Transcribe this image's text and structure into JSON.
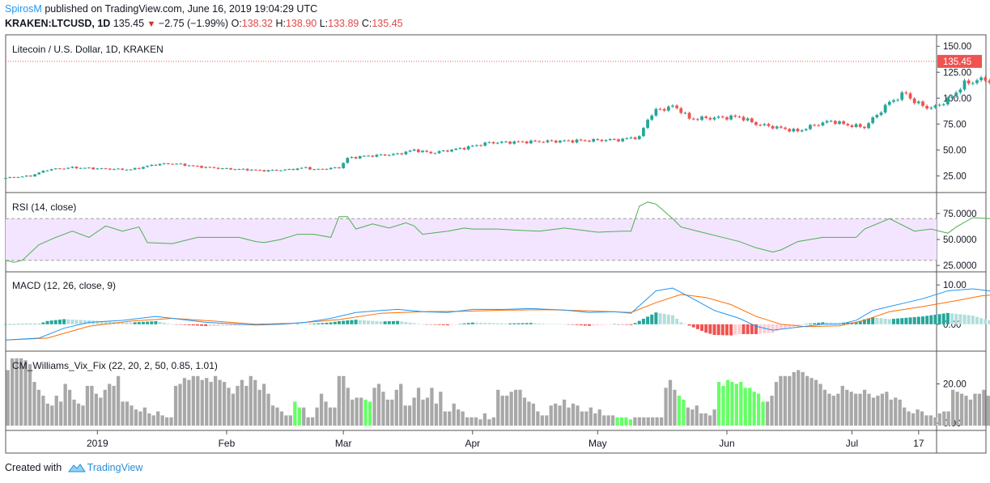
{
  "header": {
    "author": "SpirosM",
    "published": "published on TradingView.com, June 16, 2019 19:04:29 UTC",
    "symbol": "KRAKEN:LTCUSD, 1D",
    "last": "135.45",
    "change": "−2.75 (−1.99%)",
    "o_label": "O:",
    "o_val": "138.32",
    "h_label": "H:",
    "h_val": "138.90",
    "l_label": "L:",
    "l_val": "133.89",
    "c_label": "C:",
    "c_val": "135.45"
  },
  "footer": {
    "created": "Created with",
    "brand": "TradingView"
  },
  "colors": {
    "up": "#26a69a",
    "down": "#ef5350",
    "rsi": "#4caf50",
    "rsi_band": "#f3e5ff",
    "macd": "#2196f3",
    "signal": "#ff6d00",
    "vix_gray": "#a8a8a8",
    "vix_green": "#66ff66",
    "price_tag": "#ef5350"
  },
  "chart_data": [
    {
      "type": "candlestick",
      "title": "Litecoin / U.S. Dollar, 1D, KRAKEN",
      "ylim": [
        12,
        158
      ],
      "yticks": [
        25,
        50,
        75,
        100,
        125,
        150
      ],
      "ytick_labels": [
        "25.00",
        "50.00",
        "75.00",
        "100.00",
        "125.00",
        "150.00"
      ],
      "last_price_label": "135.45",
      "close_path_points": [
        [
          0,
          23
        ],
        [
          6,
          25
        ],
        [
          10,
          31
        ],
        [
          16,
          33
        ],
        [
          22,
          32
        ],
        [
          30,
          31
        ],
        [
          36,
          36
        ],
        [
          40,
          37
        ],
        [
          46,
          34
        ],
        [
          52,
          32
        ],
        [
          58,
          31
        ],
        [
          62,
          30
        ],
        [
          68,
          31
        ],
        [
          72,
          33
        ],
        [
          74,
          31
        ],
        [
          80,
          33
        ],
        [
          82,
          42
        ],
        [
          86,
          44
        ],
        [
          94,
          46
        ],
        [
          98,
          50
        ],
        [
          102,
          47
        ],
        [
          110,
          52
        ],
        [
          116,
          57
        ],
        [
          126,
          58
        ],
        [
          138,
          59
        ],
        [
          148,
          60
        ],
        [
          150,
          62
        ],
        [
          152,
          62
        ],
        [
          154,
          80
        ],
        [
          156,
          88
        ],
        [
          160,
          92
        ],
        [
          162,
          88
        ],
        [
          164,
          80
        ],
        [
          170,
          81
        ],
        [
          176,
          82
        ],
        [
          180,
          75
        ],
        [
          186,
          71
        ],
        [
          190,
          68
        ],
        [
          194,
          74
        ],
        [
          198,
          78
        ],
        [
          202,
          74
        ],
        [
          206,
          72
        ],
        [
          208,
          80
        ],
        [
          212,
          96
        ],
        [
          216,
          105
        ],
        [
          218,
          96
        ],
        [
          222,
          90
        ],
        [
          226,
          98
        ],
        [
          230,
          114
        ],
        [
          234,
          118
        ],
        [
          240,
          116
        ],
        [
          244,
          106
        ],
        [
          248,
          101
        ],
        [
          254,
          110
        ],
        [
          258,
          122
        ],
        [
          262,
          135
        ],
        [
          266,
          138
        ],
        [
          268,
          135
        ]
      ]
    },
    {
      "type": "line",
      "title": "RSI (14, close)",
      "ylim": [
        22,
        92
      ],
      "band": [
        30,
        70
      ],
      "yticks": [
        25,
        50,
        75
      ],
      "ytick_labels": [
        "25.0000",
        "50.0000",
        "75.0000"
      ],
      "points": [
        [
          0,
          30
        ],
        [
          2,
          28
        ],
        [
          4,
          30
        ],
        [
          8,
          45
        ],
        [
          12,
          52
        ],
        [
          16,
          58
        ],
        [
          20,
          52
        ],
        [
          24,
          63
        ],
        [
          28,
          58
        ],
        [
          32,
          62
        ],
        [
          34,
          47
        ],
        [
          40,
          46
        ],
        [
          46,
          52
        ],
        [
          52,
          52
        ],
        [
          56,
          52
        ],
        [
          60,
          48
        ],
        [
          62,
          47
        ],
        [
          66,
          50
        ],
        [
          70,
          55
        ],
        [
          74,
          55
        ],
        [
          78,
          52
        ],
        [
          80,
          72
        ],
        [
          82,
          72
        ],
        [
          84,
          60
        ],
        [
          88,
          65
        ],
        [
          92,
          61
        ],
        [
          96,
          66
        ],
        [
          98,
          63
        ],
        [
          100,
          55
        ],
        [
          106,
          58
        ],
        [
          110,
          61
        ],
        [
          112,
          60
        ],
        [
          118,
          60
        ],
        [
          122,
          59
        ],
        [
          128,
          58
        ],
        [
          134,
          61
        ],
        [
          138,
          59
        ],
        [
          142,
          57
        ],
        [
          148,
          58
        ],
        [
          150,
          58
        ],
        [
          152,
          82
        ],
        [
          154,
          86
        ],
        [
          156,
          84
        ],
        [
          160,
          70
        ],
        [
          162,
          62
        ],
        [
          166,
          58
        ],
        [
          172,
          52
        ],
        [
          176,
          48
        ],
        [
          180,
          42
        ],
        [
          184,
          38
        ],
        [
          186,
          40
        ],
        [
          190,
          48
        ],
        [
          196,
          52
        ],
        [
          200,
          52
        ],
        [
          204,
          52
        ],
        [
          206,
          60
        ],
        [
          212,
          70
        ],
        [
          214,
          66
        ],
        [
          218,
          58
        ],
        [
          222,
          60
        ],
        [
          226,
          56
        ],
        [
          228,
          62
        ],
        [
          232,
          71
        ],
        [
          236,
          70
        ],
        [
          240,
          66
        ],
        [
          242,
          60
        ],
        [
          246,
          56
        ],
        [
          250,
          62
        ],
        [
          254,
          66
        ],
        [
          256,
          70
        ],
        [
          262,
          70
        ],
        [
          264,
          64
        ],
        [
          268,
          66
        ]
      ]
    },
    {
      "type": "line",
      "title": "MACD (12, 26, close, 9)",
      "ylim": [
        -6,
        12.5
      ],
      "yticks": [
        0,
        10
      ],
      "ytick_labels": [
        "0.00",
        "10.00"
      ],
      "series": [
        {
          "points": [
            [
              0,
              -4
            ],
            [
              8,
              -3.5
            ],
            [
              14,
              -1
            ],
            [
              20,
              0.5
            ],
            [
              28,
              1
            ],
            [
              36,
              2
            ],
            [
              40,
              1.5
            ],
            [
              48,
              0.5
            ],
            [
              56,
              0
            ],
            [
              60,
              -0.2
            ],
            [
              66,
              0
            ],
            [
              72,
              0.5
            ],
            [
              78,
              1.5
            ],
            [
              84,
              3
            ],
            [
              90,
              3.5
            ],
            [
              94,
              3.8
            ],
            [
              100,
              3.2
            ],
            [
              106,
              3
            ],
            [
              112,
              3.8
            ],
            [
              120,
              3.8
            ],
            [
              126,
              4
            ],
            [
              134,
              3.6
            ],
            [
              140,
              3
            ],
            [
              146,
              3.2
            ],
            [
              150,
              2.8
            ],
            [
              156,
              8.5
            ],
            [
              160,
              9.2
            ],
            [
              164,
              7
            ],
            [
              170,
              3.5
            ],
            [
              176,
              1.5
            ],
            [
              180,
              -0.5
            ],
            [
              184,
              -1.5
            ],
            [
              188,
              -1
            ],
            [
              192,
              -0.5
            ],
            [
              196,
              0
            ],
            [
              200,
              0
            ],
            [
              204,
              1
            ],
            [
              208,
              3.5
            ],
            [
              212,
              4.5
            ],
            [
              216,
              5.5
            ],
            [
              220,
              6.5
            ],
            [
              226,
              8.5
            ],
            [
              232,
              9
            ],
            [
              236,
              8.5
            ],
            [
              242,
              6
            ],
            [
              248,
              6
            ],
            [
              252,
              7
            ],
            [
              256,
              9.5
            ],
            [
              262,
              10.2
            ],
            [
              266,
              10.2
            ]
          ]
        },
        {
          "points": [
            [
              0,
              -4
            ],
            [
              10,
              -3.5
            ],
            [
              20,
              -0.5
            ],
            [
              30,
              0.8
            ],
            [
              40,
              1.5
            ],
            [
              50,
              0.8
            ],
            [
              60,
              0
            ],
            [
              70,
              0.3
            ],
            [
              80,
              1.2
            ],
            [
              90,
              2.8
            ],
            [
              100,
              3.2
            ],
            [
              110,
              3.3
            ],
            [
              120,
              3.6
            ],
            [
              130,
              3.7
            ],
            [
              140,
              3.4
            ],
            [
              150,
              3
            ],
            [
              156,
              5.5
            ],
            [
              162,
              7.6
            ],
            [
              168,
              6.8
            ],
            [
              174,
              5
            ],
            [
              180,
              2
            ],
            [
              186,
              0
            ],
            [
              192,
              -0.6
            ],
            [
              200,
              -0.4
            ],
            [
              206,
              1
            ],
            [
              212,
              3.2
            ],
            [
              220,
              4.5
            ],
            [
              228,
              6
            ],
            [
              234,
              7.2
            ],
            [
              240,
              7.8
            ],
            [
              248,
              7
            ],
            [
              256,
              8
            ],
            [
              266,
              9.2
            ]
          ]
        }
      ]
    },
    {
      "type": "bar",
      "title": "CM_Williams_Vix_Fix (22, 20, 2, 50, 0.85, 1.01)",
      "ylim": [
        -2,
        35
      ],
      "yticks": [
        0,
        20
      ],
      "ytick_labels": [
        "0.00",
        "20.00"
      ],
      "values": [
        27,
        33,
        33,
        33,
        32,
        30,
        21,
        17,
        14,
        10,
        9,
        14,
        11,
        20,
        17,
        12,
        10,
        9,
        19,
        19,
        15,
        13,
        17,
        20,
        19,
        24,
        11,
        11,
        9,
        7,
        6,
        8,
        5,
        4,
        6,
        4,
        3,
        3,
        19,
        20,
        23,
        22,
        24,
        24,
        22,
        23,
        21,
        24,
        22,
        21,
        18,
        15,
        19,
        22,
        19,
        24,
        22,
        17,
        20,
        15,
        9,
        8,
        6,
        4,
        4,
        11,
        8,
        8,
        3,
        3,
        8,
        15,
        11,
        8,
        8,
        24,
        24,
        18,
        12,
        13,
        13,
        12,
        11,
        18,
        20,
        16,
        12,
        12,
        17,
        20,
        9,
        9,
        13,
        18,
        12,
        13,
        18,
        10,
        16,
        6,
        6,
        10,
        7,
        6,
        3,
        3,
        3,
        2,
        5,
        2,
        3,
        17,
        14,
        14,
        16,
        17,
        17,
        13,
        11,
        10,
        6,
        4,
        4,
        9,
        10,
        9,
        12,
        8,
        10,
        9,
        6,
        6,
        8,
        5,
        7,
        4,
        4,
        4,
        3,
        3,
        3,
        2,
        3,
        3,
        3,
        3,
        3,
        3,
        3,
        18,
        22,
        17,
        14,
        12,
        8,
        7,
        9,
        5,
        5,
        4,
        7,
        21,
        19,
        22,
        21,
        20,
        21,
        18,
        18,
        16,
        15,
        11,
        11,
        14,
        21,
        24,
        24,
        24,
        26,
        27,
        26,
        24,
        23,
        22,
        20,
        17,
        15,
        14,
        15,
        19,
        17,
        16,
        15,
        15,
        17,
        15,
        13,
        14,
        15,
        16,
        12,
        13,
        12,
        8,
        6,
        5,
        7,
        6,
        4,
        4,
        3,
        5,
        6,
        6,
        17,
        16,
        15,
        14,
        12,
        15,
        15,
        17,
        14,
        16,
        13,
        11,
        10,
        8,
        6,
        6,
        12,
        9,
        8,
        8,
        3,
        3,
        8,
        4,
        4,
        4,
        4,
        4,
        4,
        3,
        3,
        3,
        3,
        2,
        2,
        2,
        3,
        4,
        5
      ],
      "highlight_indices": [
        65,
        66,
        81,
        82,
        138,
        139,
        140,
        141,
        152,
        153,
        161,
        162,
        163,
        164,
        165,
        166,
        167,
        168,
        169,
        170,
        171
      ],
      "mean_estimate": 12
    }
  ],
  "time_axis": {
    "labels": [
      "2019",
      "Feb",
      "Mar",
      "Apr",
      "May",
      "Jun",
      "Jul",
      "17"
    ],
    "tick_days": [
      22,
      53,
      81,
      112,
      142,
      173,
      203,
      219
    ]
  }
}
